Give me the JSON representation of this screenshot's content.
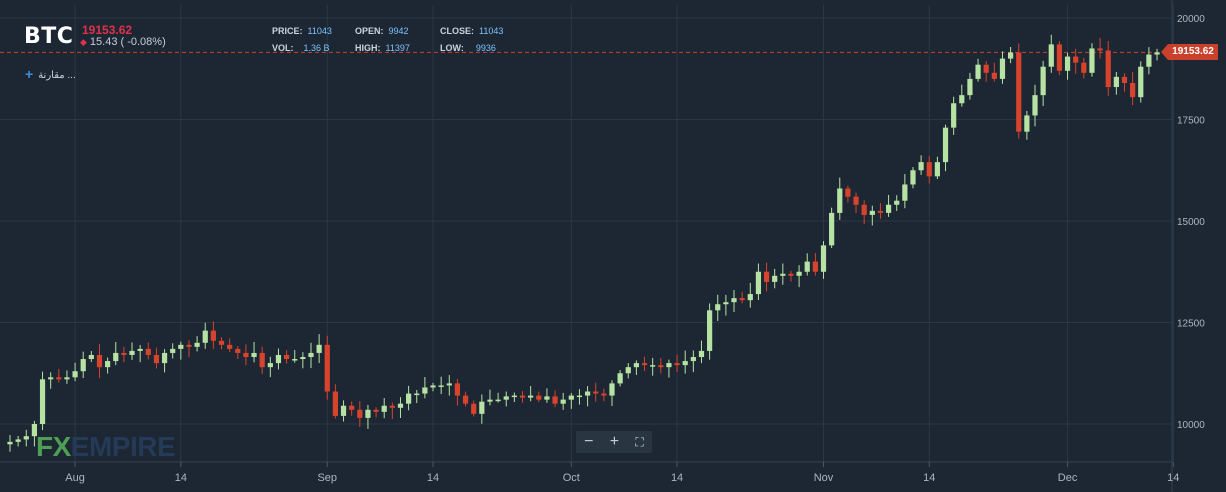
{
  "header": {
    "ticker": "BTC",
    "last_price": "19153.62",
    "change": "15.43 ( -0.08%)",
    "compare_label": "مقارنة ..."
  },
  "stats": {
    "price_label": "PRICE:",
    "price": "11043",
    "vol_label": "VOL:",
    "vol": "1.36 B",
    "open_label": "OPEN:",
    "open": "9942",
    "high_label": "HIGH:",
    "high": "11397",
    "close_label": "CLOSE:",
    "close": "11043",
    "low_label": "LOW:",
    "low": "9936"
  },
  "logo": {
    "fx": "FX",
    "empire": "EMPIRE"
  },
  "controls": {
    "zoom_out": "−",
    "zoom_in": "+",
    "fullscreen": "⛶"
  },
  "colors": {
    "background": "#1c2733",
    "up": "#b6e3a4",
    "down": "#d8432d",
    "grid": "#2a3846",
    "last_price": "#c9402c",
    "accent": "#7ec2ff"
  },
  "chart_data": {
    "type": "candlestick",
    "y_ticks": [
      "10000",
      "12500",
      "15000",
      "17500",
      "20000"
    ],
    "ylim": [
      9200,
      20100
    ],
    "x_labels": [
      {
        "label": "Aug",
        "index": 8
      },
      {
        "label": "14",
        "index": 21
      },
      {
        "label": "Sep",
        "index": 39
      },
      {
        "label": "14",
        "index": 52
      },
      {
        "label": "Oct",
        "index": 69
      },
      {
        "label": "14",
        "index": 82
      },
      {
        "label": "Nov",
        "index": 100
      },
      {
        "label": "14",
        "index": 113
      },
      {
        "label": "Dec",
        "index": 130
      },
      {
        "label": "14",
        "index": 143
      }
    ],
    "last_price": 19153.62,
    "last_price_label": "19153.62",
    "closes": [
      9560,
      9620,
      9700,
      10000,
      11100,
      11150,
      11100,
      11150,
      11300,
      11600,
      11700,
      11400,
      11550,
      11750,
      11700,
      11800,
      11850,
      11700,
      11500,
      11750,
      11850,
      11950,
      11900,
      12000,
      12300,
      12050,
      11950,
      11850,
      11750,
      11650,
      11750,
      11400,
      11500,
      11700,
      11600,
      11600,
      11650,
      11750,
      11950,
      10800,
      10200,
      10450,
      10350,
      10150,
      10350,
      10300,
      10450,
      10400,
      10500,
      10750,
      10750,
      10900,
      10950,
      10950,
      11000,
      10700,
      10500,
      10250,
      10550,
      10600,
      10600,
      10680,
      10700,
      10650,
      10700,
      10600,
      10680,
      10500,
      10600,
      10700,
      10700,
      10800,
      10750,
      10700,
      11000,
      11250,
      11400,
      11500,
      11450,
      11450,
      11400,
      11500,
      11450,
      11550,
      11650,
      11800,
      12800,
      12950,
      13000,
      13100,
      13050,
      13200,
      13750,
      13500,
      13650,
      13700,
      13650,
      13750,
      14000,
      13750,
      14400,
      15200,
      15800,
      15600,
      15400,
      15150,
      15250,
      15200,
      15400,
      15500,
      15900,
      16250,
      16450,
      16100,
      16450,
      17300,
      17900,
      18100,
      18500,
      18850,
      18650,
      18500,
      19000,
      19150,
      17200,
      17600,
      18100,
      18800,
      19350,
      18700,
      19050,
      18900,
      18650,
      19250,
      19200,
      18300,
      18550,
      18400,
      18050,
      18800,
      19100,
      19153
    ]
  }
}
